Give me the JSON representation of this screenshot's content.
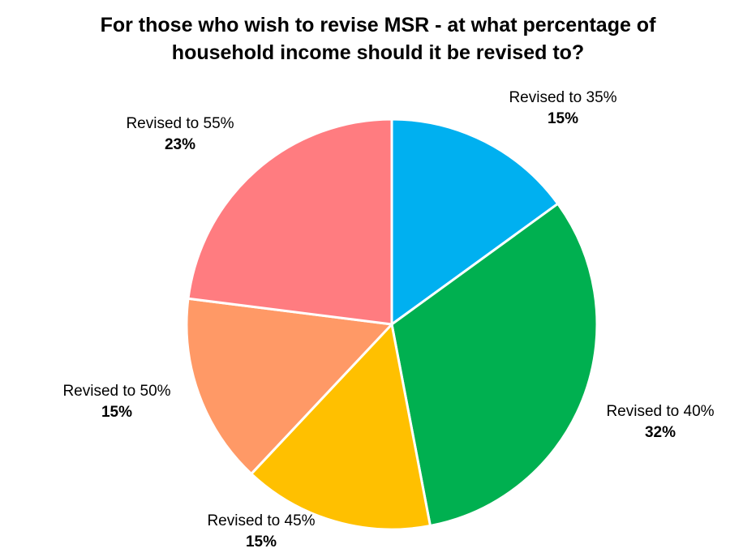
{
  "chart_data": {
    "type": "pie",
    "title_lines": [
      "For those who wish to revise MSR - at what percentage of",
      "household income should it be revised to?"
    ],
    "start_angle_deg": 0,
    "direction": "clockwise",
    "slices": [
      {
        "label": "Revised to 35%",
        "value": 15,
        "value_label": "15%",
        "color": "#00B0F0"
      },
      {
        "label": "Revised to 40%",
        "value": 32,
        "value_label": "32%",
        "color": "#00B050"
      },
      {
        "label": "Revised to 45%",
        "value": 15,
        "value_label": "15%",
        "color": "#FFC000"
      },
      {
        "label": "Revised to 50%",
        "value": 15,
        "value_label": "15%",
        "color": "#FF9966"
      },
      {
        "label": "Revised to 55%",
        "value": 23,
        "value_label": "23%",
        "color": "#FF7C80"
      }
    ],
    "legend": "none"
  }
}
